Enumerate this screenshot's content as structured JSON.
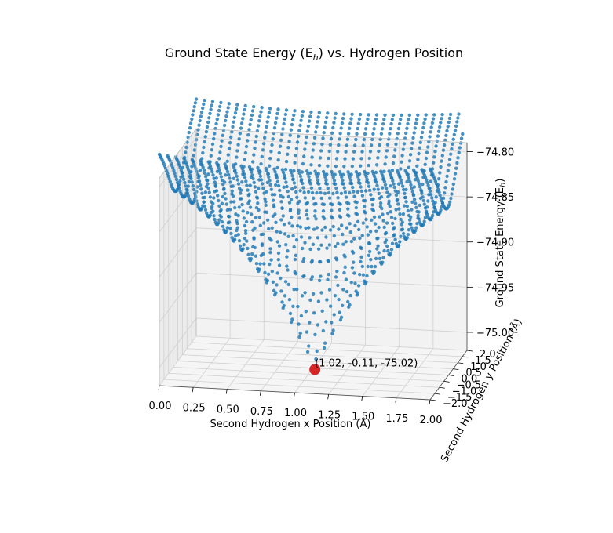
{
  "chart_data": {
    "type": "scatter",
    "projection": "3d",
    "title": "Ground State Energy (E_h) vs. Hydrogen Position",
    "title_prefix": "Ground State Energy (E",
    "title_sub": "h",
    "title_suffix": ") vs. Hydrogen Position",
    "xlabel": "Second Hydrogen x Position (Å)",
    "ylabel": "Second Hydrogen y Position (Å)",
    "zlabel": "Ground State Energy (E",
    "zlabel_sub": "h",
    "zlabel_suffix": ")",
    "xlim": [
      0.0,
      2.0
    ],
    "ylim": [
      -2.0,
      2.0
    ],
    "zlim": [
      -75.02,
      -74.79
    ],
    "x_ticks": [
      "0.00",
      "0.25",
      "0.50",
      "0.75",
      "1.00",
      "1.25",
      "1.50",
      "1.75",
      "2.00"
    ],
    "y_ticks": [
      "−2.0",
      "−1.5",
      "−1.0",
      "−0.5",
      "0.0",
      "0.5",
      "1.0",
      "1.5",
      "2.0"
    ],
    "z_ticks": [
      "−75.00",
      "−74.95",
      "−74.90",
      "−74.85",
      "−74.80"
    ],
    "grid": true,
    "series": [
      {
        "color": "#1f77b4",
        "marker": "o"
      }
    ],
    "minimum_point": {
      "x": 1.02,
      "y": -0.11,
      "z": -75.02,
      "color": "#d62728",
      "label": "(1.02, -0.11, -75.02)"
    }
  }
}
